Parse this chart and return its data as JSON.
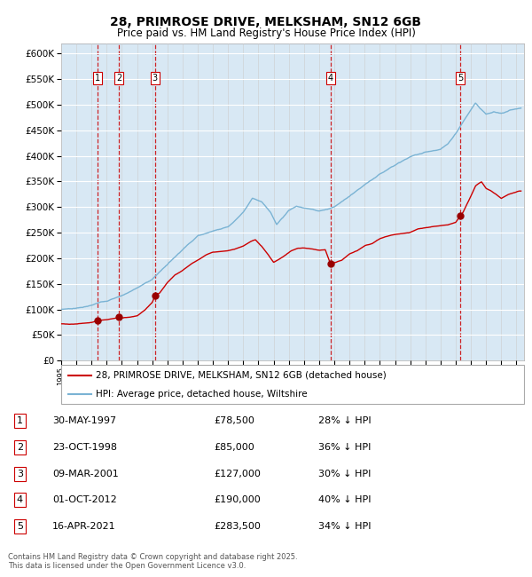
{
  "title": "28, PRIMROSE DRIVE, MELKSHAM, SN12 6GB",
  "subtitle": "Price paid vs. HM Land Registry's House Price Index (HPI)",
  "footer": "Contains HM Land Registry data © Crown copyright and database right 2025.\nThis data is licensed under the Open Government Licence v3.0.",
  "legend_line1": "28, PRIMROSE DRIVE, MELKSHAM, SN12 6GB (detached house)",
  "legend_line2": "HPI: Average price, detached house, Wiltshire",
  "hpi_color": "#7ab3d4",
  "price_color": "#cc0000",
  "marker_color": "#990000",
  "vline_color": "#cc0000",
  "bg_color": "#d8e8f4",
  "ylim": [
    0,
    620000
  ],
  "ytick_step": 50000,
  "xlim_start": 1995.0,
  "xlim_end": 2025.5,
  "transactions": [
    {
      "num": 1,
      "x_approx": 1997.41,
      "price": 78500,
      "label": "30-MAY-1997",
      "pct": "28% ↓ HPI"
    },
    {
      "num": 2,
      "x_approx": 1998.81,
      "price": 85000,
      "label": "23-OCT-1998",
      "pct": "36% ↓ HPI"
    },
    {
      "num": 3,
      "x_approx": 2001.18,
      "price": 127000,
      "label": "09-MAR-2001",
      "pct": "30% ↓ HPI"
    },
    {
      "num": 4,
      "x_approx": 2012.75,
      "price": 190000,
      "label": "01-OCT-2012",
      "pct": "40% ↓ HPI"
    },
    {
      "num": 5,
      "x_approx": 2021.29,
      "price": 283500,
      "label": "16-APR-2021",
      "pct": "34% ↓ HPI"
    }
  ],
  "hpi_anchors": [
    [
      1995.0,
      100000
    ],
    [
      1996.0,
      103000
    ],
    [
      1997.0,
      108000
    ],
    [
      1997.5,
      113000
    ],
    [
      1998.0,
      117000
    ],
    [
      1999.0,
      128000
    ],
    [
      2000.0,
      143000
    ],
    [
      2001.0,
      160000
    ],
    [
      2002.0,
      190000
    ],
    [
      2003.0,
      220000
    ],
    [
      2004.0,
      248000
    ],
    [
      2005.0,
      258000
    ],
    [
      2006.0,
      268000
    ],
    [
      2007.0,
      295000
    ],
    [
      2007.6,
      322000
    ],
    [
      2008.2,
      315000
    ],
    [
      2008.8,
      295000
    ],
    [
      2009.2,
      272000
    ],
    [
      2009.6,
      285000
    ],
    [
      2010.0,
      300000
    ],
    [
      2010.5,
      308000
    ],
    [
      2011.0,
      305000
    ],
    [
      2011.5,
      303000
    ],
    [
      2012.0,
      300000
    ],
    [
      2012.5,
      302000
    ],
    [
      2013.0,
      308000
    ],
    [
      2014.0,
      328000
    ],
    [
      2015.0,
      348000
    ],
    [
      2016.0,
      368000
    ],
    [
      2017.0,
      388000
    ],
    [
      2018.0,
      403000
    ],
    [
      2019.0,
      413000
    ],
    [
      2020.0,
      418000
    ],
    [
      2020.5,
      428000
    ],
    [
      2021.0,
      448000
    ],
    [
      2021.5,
      472000
    ],
    [
      2022.0,
      495000
    ],
    [
      2022.3,
      508000
    ],
    [
      2022.6,
      498000
    ],
    [
      2023.0,
      488000
    ],
    [
      2023.5,
      492000
    ],
    [
      2024.0,
      488000
    ],
    [
      2024.5,
      493000
    ],
    [
      2025.2,
      497000
    ]
  ],
  "price_anchors": [
    [
      1995.0,
      72000
    ],
    [
      1995.5,
      70500
    ],
    [
      1996.0,
      71000
    ],
    [
      1996.5,
      72500
    ],
    [
      1997.0,
      74000
    ],
    [
      1997.41,
      78500
    ],
    [
      1997.7,
      79500
    ],
    [
      1998.0,
      80500
    ],
    [
      1998.81,
      85000
    ],
    [
      1999.0,
      84000
    ],
    [
      1999.5,
      86000
    ],
    [
      2000.0,
      89000
    ],
    [
      2000.5,
      100000
    ],
    [
      2001.0,
      115000
    ],
    [
      2001.18,
      127000
    ],
    [
      2001.5,
      133000
    ],
    [
      2002.0,
      153000
    ],
    [
      2002.5,
      168000
    ],
    [
      2003.0,
      177000
    ],
    [
      2003.5,
      188000
    ],
    [
      2004.0,
      197000
    ],
    [
      2004.5,
      207000
    ],
    [
      2005.0,
      213000
    ],
    [
      2005.5,
      215000
    ],
    [
      2006.0,
      217000
    ],
    [
      2006.5,
      221000
    ],
    [
      2007.0,
      226000
    ],
    [
      2007.5,
      235000
    ],
    [
      2007.8,
      238000
    ],
    [
      2008.2,
      225000
    ],
    [
      2008.6,
      210000
    ],
    [
      2009.0,
      193000
    ],
    [
      2009.4,
      200000
    ],
    [
      2009.8,
      208000
    ],
    [
      2010.2,
      216000
    ],
    [
      2010.6,
      220000
    ],
    [
      2011.0,
      220000
    ],
    [
      2011.5,
      219000
    ],
    [
      2012.0,
      216000
    ],
    [
      2012.4,
      218000
    ],
    [
      2012.75,
      190000
    ],
    [
      2013.0,
      193000
    ],
    [
      2013.5,
      198000
    ],
    [
      2014.0,
      210000
    ],
    [
      2014.5,
      216000
    ],
    [
      2015.0,
      226000
    ],
    [
      2015.5,
      231000
    ],
    [
      2016.0,
      241000
    ],
    [
      2016.5,
      246000
    ],
    [
      2017.0,
      249000
    ],
    [
      2017.5,
      251000
    ],
    [
      2018.0,
      253000
    ],
    [
      2018.5,
      259000
    ],
    [
      2019.0,
      261000
    ],
    [
      2019.5,
      263000
    ],
    [
      2020.0,
      264000
    ],
    [
      2020.5,
      266000
    ],
    [
      2021.0,
      271000
    ],
    [
      2021.29,
      283500
    ],
    [
      2021.5,
      292000
    ],
    [
      2022.0,
      322000
    ],
    [
      2022.3,
      342000
    ],
    [
      2022.5,
      347000
    ],
    [
      2022.7,
      350000
    ],
    [
      2023.0,
      337000
    ],
    [
      2023.3,
      332000
    ],
    [
      2023.6,
      326000
    ],
    [
      2024.0,
      317000
    ],
    [
      2024.5,
      326000
    ],
    [
      2025.2,
      332000
    ]
  ]
}
